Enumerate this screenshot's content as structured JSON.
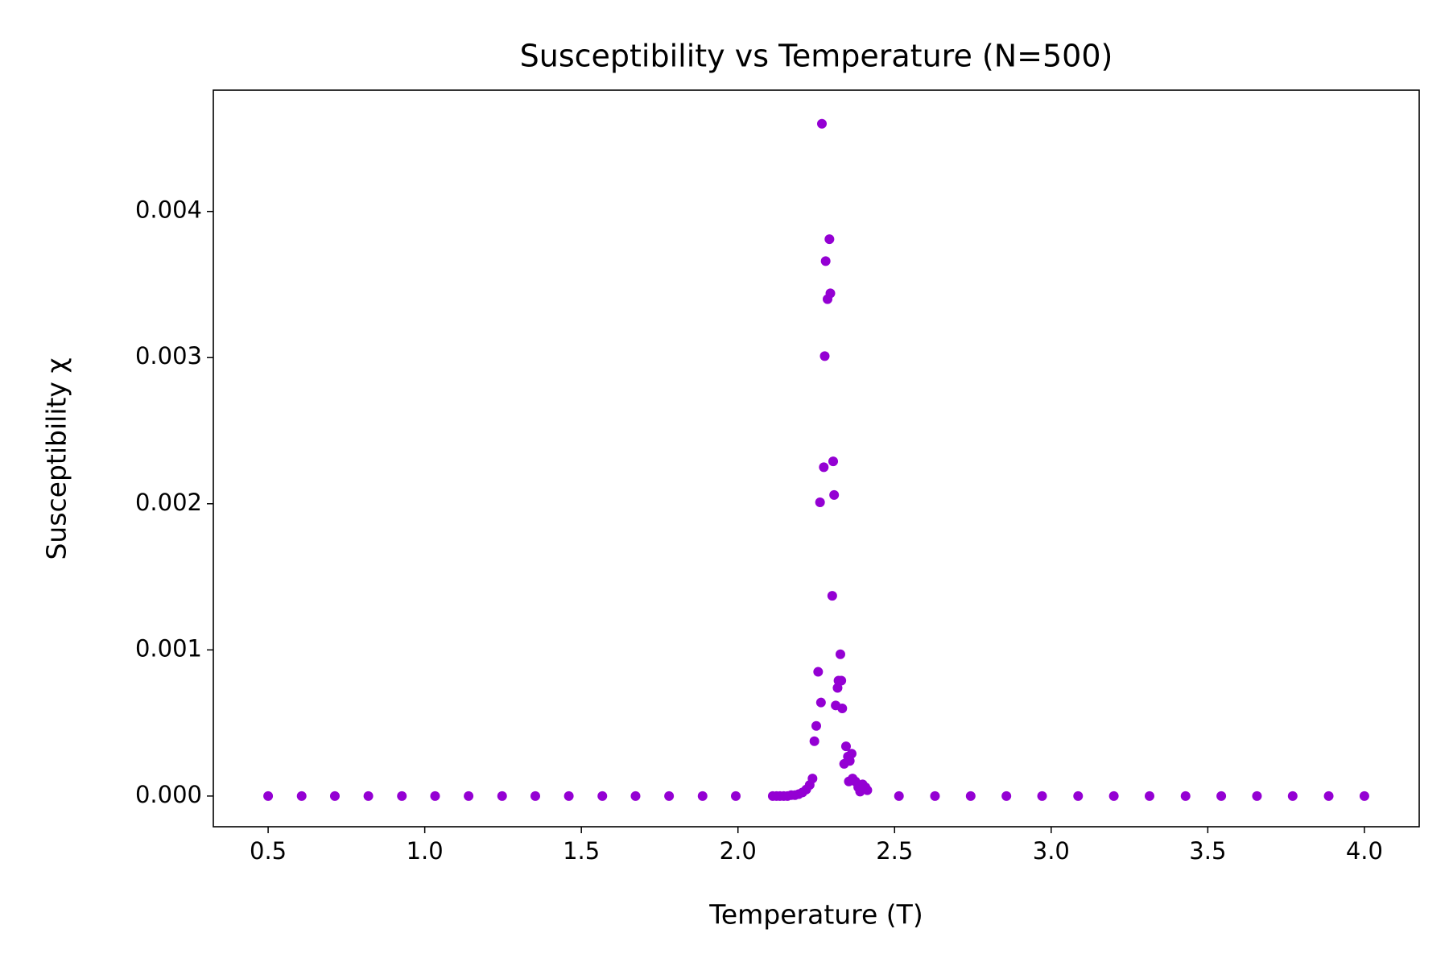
{
  "chart_data": {
    "type": "scatter",
    "title": "Susceptibility vs Temperature (N=500)",
    "xlabel": "Temperature (T)",
    "ylabel": "Susceptibility χ",
    "color": "#9400d3",
    "x": [
      0.5,
      0.607,
      0.713,
      0.82,
      0.927,
      1.033,
      1.14,
      1.247,
      1.353,
      1.46,
      1.567,
      1.673,
      1.78,
      1.887,
      1.993,
      2.111,
      2.123,
      2.134,
      2.146,
      2.158,
      2.17,
      2.182,
      2.194,
      2.206,
      2.218,
      2.229,
      2.238,
      2.244,
      2.25,
      2.256,
      2.262,
      2.265,
      2.268,
      2.274,
      2.277,
      2.28,
      2.286,
      2.292,
      2.295,
      2.301,
      2.304,
      2.307,
      2.312,
      2.318,
      2.321,
      2.327,
      2.33,
      2.333,
      2.339,
      2.345,
      2.351,
      2.354,
      2.357,
      2.363,
      2.366,
      2.375,
      2.384,
      2.39,
      2.398,
      2.407,
      2.413,
      2.514,
      2.629,
      2.743,
      2.857,
      2.971,
      3.086,
      3.2,
      3.314,
      3.429,
      3.543,
      3.657,
      3.771,
      3.886,
      4.0
    ],
    "y": [
      0,
      0,
      0,
      0,
      0,
      0,
      0,
      0,
      0,
      0,
      0,
      0,
      0,
      0,
      0,
      0,
      0,
      0,
      0,
      0,
      6e-06,
      6e-06,
      1.3e-05,
      2.5e-05,
      4.5e-05,
      7.6e-05,
      0.00012,
      0.000375,
      0.00048,
      0.00085,
      0.00201,
      0.00064,
      0.0046,
      0.00225,
      0.00301,
      0.00366,
      0.0034,
      0.00381,
      0.00344,
      0.00137,
      0.00229,
      0.00206,
      0.00062,
      0.00074,
      0.00079,
      0.00097,
      0.00079,
      0.0006,
      0.00022,
      0.00034,
      0.00027,
      0.0001,
      0.00024,
      0.00029,
      0.00012,
      0.0001,
      6e-05,
      3e-05,
      8e-05,
      6e-05,
      4e-05,
      0,
      0,
      0,
      0,
      0,
      0,
      0,
      0,
      0,
      0,
      0,
      0,
      0,
      0
    ],
    "xlim": [
      0.325,
      4.175
    ],
    "ylim": [
      -0.00021,
      0.00483
    ],
    "xticks": [
      0.5,
      {
        "value": 1,
        "label": "1.0"
      },
      1.5,
      {
        "value": 2,
        "label": "2.0"
      },
      2.5,
      {
        "value": 3,
        "label": "3.0"
      },
      3.5,
      {
        "value": 4,
        "label": "4.0"
      }
    ],
    "yticks": [
      {
        "value": 0,
        "label": "0.000"
      },
      0.001,
      0.002,
      0.003,
      0.004
    ],
    "grid": false
  }
}
